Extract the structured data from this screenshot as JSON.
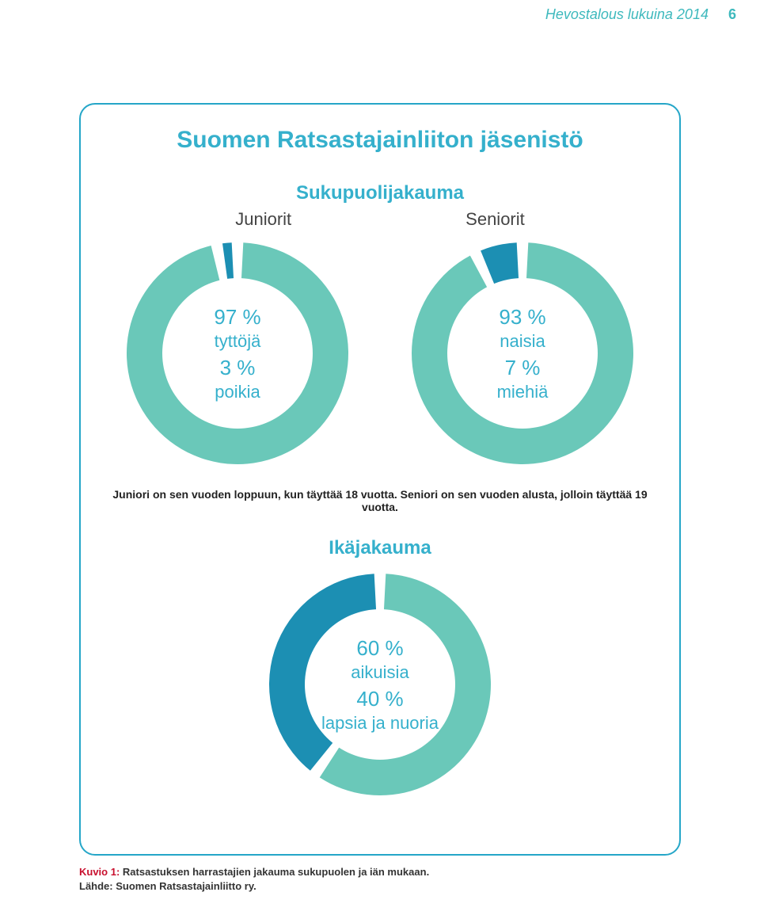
{
  "header": {
    "text": "Hevostalous lukuina 2014",
    "page": "6"
  },
  "title": "Suomen Ratsastajainliiton jäsenistö",
  "section_gender": {
    "title": "Sukupuolijakauma",
    "left_label": "Juniorit",
    "right_label": "Seniorit"
  },
  "juniors": {
    "type": "donut",
    "slices": [
      {
        "pct": 97,
        "color": "#6ac8b9",
        "label_pct": "97 %",
        "label_text": "tyttöjä"
      },
      {
        "pct": 3,
        "color": "#1c8fb3",
        "label_pct": "3 %",
        "label_text": "poikia"
      }
    ],
    "inner_bg": "#ffffff",
    "gap_deg": 6,
    "outer_r": 140,
    "inner_r": 95
  },
  "seniors": {
    "type": "donut",
    "slices": [
      {
        "pct": 93,
        "color": "#6ac8b9",
        "label_pct": "93 %",
        "label_text": "naisia"
      },
      {
        "pct": 7,
        "color": "#1c8fb3",
        "label_pct": "7 %",
        "label_text": "miehiä"
      }
    ],
    "inner_bg": "#ffffff",
    "gap_deg": 6,
    "outer_r": 140,
    "inner_r": 95
  },
  "definition": "Juniori on sen vuoden loppuun, kun täyttää 18 vuotta. Seniori on sen vuoden alusta, jolloin täyttää 19 vuotta.",
  "section_age": {
    "title": "Ikäjakauma"
  },
  "age": {
    "type": "donut",
    "slices": [
      {
        "pct": 60,
        "color": "#6ac8b9",
        "label_pct": "60 %",
        "label_text": "aikuisia"
      },
      {
        "pct": 40,
        "color": "#1c8fb3",
        "label_pct": "40 %",
        "label_text": "lapsia ja nuoria"
      }
    ],
    "inner_bg": "#ffffff",
    "gap_deg": 6,
    "outer_r": 140,
    "inner_r": 95
  },
  "footer": {
    "kuvio": "Kuvio 1:",
    "caption": "Ratsastuksen harrastajien jakauma sukupuolen ja iän mukaan.",
    "source": "Lähde: Suomen Ratsastajainliitto ry."
  }
}
